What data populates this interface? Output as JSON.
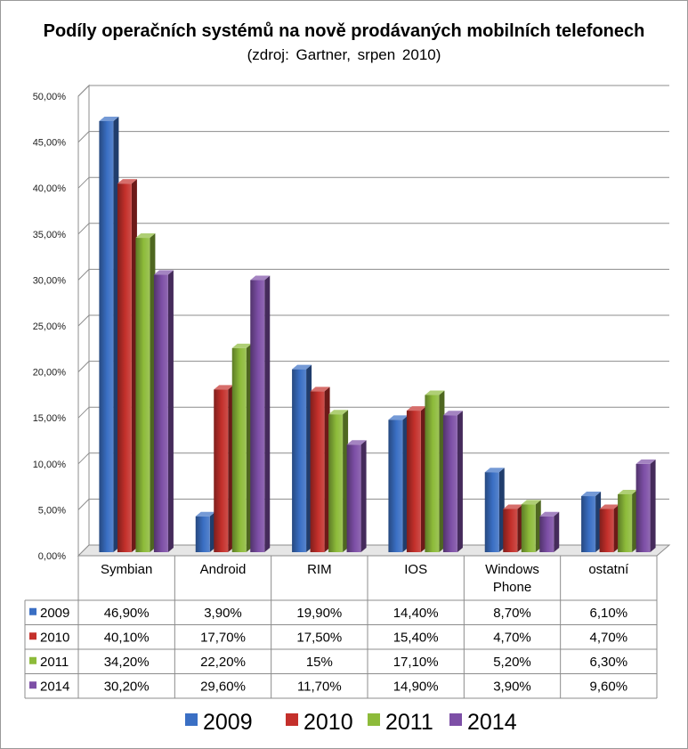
{
  "chart_data": {
    "type": "bar",
    "title": "Podíly operačních systémů na nově prodávaných mobilních telefonech",
    "subtitle": "(zdroj: Gartner, srpen 2010)",
    "categories": [
      "Symbian",
      "Android",
      "RIM",
      "IOS",
      "Windows Phone",
      "ostatní"
    ],
    "series": [
      {
        "name": "2009",
        "color": "#3A6FC4",
        "values": [
          46.9,
          3.9,
          19.9,
          14.4,
          8.7,
          6.1
        ],
        "labels": [
          "46,90%",
          "3,90%",
          "19,90%",
          "14,40%",
          "8,70%",
          "6,10%"
        ]
      },
      {
        "name": "2010",
        "color": "#C4302B",
        "values": [
          40.1,
          17.7,
          17.5,
          15.4,
          4.7,
          4.7
        ],
        "labels": [
          "40,10%",
          "17,70%",
          "17,50%",
          "15,40%",
          "4,70%",
          "4,70%"
        ]
      },
      {
        "name": "2011",
        "color": "#8DBB3A",
        "values": [
          34.2,
          22.2,
          15,
          17.1,
          5.2,
          6.3
        ],
        "labels": [
          "34,20%",
          "22,20%",
          "15%",
          "17,10%",
          "5,20%",
          "6,30%"
        ]
      },
      {
        "name": "2014",
        "color": "#7D4FA6",
        "values": [
          30.2,
          29.6,
          11.7,
          14.9,
          3.9,
          9.6
        ],
        "labels": [
          "30,20%",
          "29,60%",
          "11,70%",
          "14,90%",
          "3,90%",
          "9,60%"
        ]
      }
    ],
    "ylim": [
      0,
      50
    ],
    "yticks": [
      "0,00%",
      "5,00%",
      "10,00%",
      "15,00%",
      "20,00%",
      "25,00%",
      "30,00%",
      "35,00%",
      "40,00%",
      "45,00%",
      "50,00%"
    ],
    "grid": true,
    "legend": "bottom",
    "data_table": true
  }
}
